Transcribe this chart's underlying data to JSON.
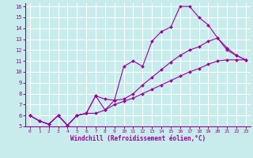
{
  "xlabel": "Windchill (Refroidissement éolien,°C)",
  "bg_color": "#c8ecec",
  "line_color": "#990099",
  "grid_color": "#ffffff",
  "xlim": [
    -0.5,
    23.5
  ],
  "ylim": [
    5,
    16.3
  ],
  "xticks": [
    0,
    1,
    2,
    3,
    4,
    5,
    6,
    7,
    8,
    9,
    10,
    11,
    12,
    13,
    14,
    15,
    16,
    17,
    18,
    19,
    20,
    21,
    22,
    23
  ],
  "yticks": [
    5,
    6,
    7,
    8,
    9,
    10,
    11,
    12,
    13,
    14,
    15,
    16
  ],
  "series": [
    {
      "x": [
        0,
        1,
        2,
        3,
        4,
        5,
        6,
        7,
        8,
        9,
        10,
        11,
        12,
        13,
        14,
        15,
        16,
        17,
        18,
        19,
        20,
        21,
        22,
        23
      ],
      "y": [
        6.0,
        5.5,
        5.2,
        6.0,
        5.1,
        6.0,
        6.2,
        6.2,
        6.5,
        7.0,
        7.3,
        7.6,
        8.0,
        8.4,
        8.8,
        9.2,
        9.6,
        10.0,
        10.3,
        10.7,
        11.0,
        11.1,
        11.1,
        11.1
      ]
    },
    {
      "x": [
        0,
        1,
        2,
        3,
        4,
        5,
        6,
        7,
        8,
        9,
        10,
        11,
        12,
        13,
        14,
        15,
        16,
        17,
        18,
        19,
        20,
        21,
        22,
        23
      ],
      "y": [
        6.0,
        5.5,
        5.2,
        6.0,
        5.1,
        6.0,
        6.2,
        7.8,
        7.5,
        7.4,
        10.5,
        11.0,
        10.5,
        12.8,
        13.7,
        14.1,
        16.0,
        16.0,
        15.0,
        14.3,
        13.1,
        12.0,
        11.5,
        11.1
      ]
    },
    {
      "x": [
        0,
        1,
        2,
        3,
        4,
        5,
        6,
        7,
        8,
        9,
        10,
        11,
        12,
        13,
        14,
        15,
        16,
        17,
        18,
        19,
        20,
        21,
        22,
        23
      ],
      "y": [
        6.0,
        5.5,
        5.2,
        6.0,
        5.1,
        6.0,
        6.2,
        7.8,
        6.5,
        7.4,
        7.5,
        8.0,
        8.8,
        9.5,
        10.2,
        10.9,
        11.5,
        12.0,
        12.3,
        12.8,
        13.1,
        12.2,
        11.5,
        11.1
      ]
    }
  ]
}
